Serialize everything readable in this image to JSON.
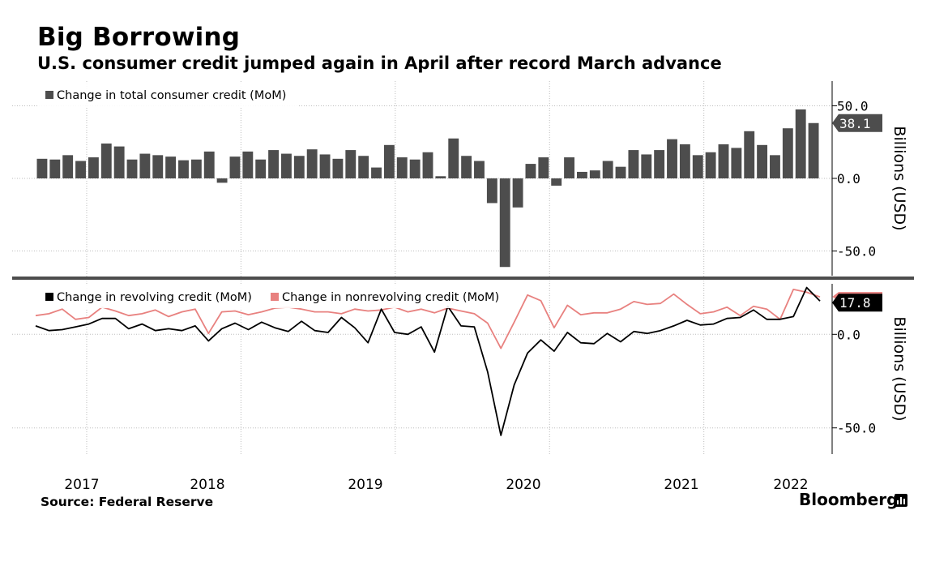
{
  "header": {
    "title": "Big Borrowing",
    "subtitle": "U.S. consumer credit jumped again in April after record March advance"
  },
  "footer": {
    "source": "Source: Federal Reserve",
    "brand": "Bloomberg",
    "brand_icon": "bloomberg-terminal-icon"
  },
  "colors": {
    "bar": "#4d4d4d",
    "revolving": "#000000",
    "nonrevolving": "#e8817f",
    "grid": "#bdbdbd",
    "divider": "#4d4d4d"
  },
  "chart_data": [
    {
      "type": "bar",
      "legend": [
        "Change in total consumer credit (MoM)"
      ],
      "ylabel": "Billions (USD)",
      "yticks": [
        50.0,
        0.0,
        -50.0
      ],
      "ytick_labels": [
        "50.0",
        "0.0",
        "-50.0"
      ],
      "ylim": [
        -67,
        67
      ],
      "x_start": "2016-09",
      "x_end": "2022-04",
      "x_tick_labels": [
        "2017",
        "2018",
        "2019",
        "2020",
        "2021",
        "2022"
      ],
      "last_value_label": "38.1",
      "series": [
        {
          "name": "Change in total consumer credit (MoM)",
          "values": [
            13.5,
            13.0,
            16.0,
            12.0,
            14.5,
            24.0,
            22.0,
            13.0,
            17.0,
            16.0,
            15.0,
            12.5,
            13.0,
            18.5,
            -3.0,
            15.0,
            18.5,
            13.0,
            19.5,
            17.0,
            15.5,
            20.0,
            16.5,
            13.5,
            19.5,
            15.5,
            7.5,
            23.0,
            14.5,
            13.0,
            18.0,
            1.5,
            27.5,
            15.5,
            12.0,
            -17.0,
            -61.0,
            -20.0,
            10.0,
            14.5,
            -5.0,
            14.5,
            4.5,
            5.5,
            12.0,
            8.0,
            19.5,
            16.5,
            19.5,
            27.0,
            23.5,
            16.0,
            18.0,
            23.5,
            21.0,
            32.5,
            23.0,
            16.0,
            34.5,
            47.5,
            38.1
          ]
        }
      ]
    },
    {
      "type": "line",
      "legend": [
        "Change in revolving credit (MoM)",
        "Change in nonrevolving credit (MoM)"
      ],
      "ylabel": "Billions (USD)",
      "yticks": [
        0.0,
        -50.0
      ],
      "ytick_labels": [
        "0.0",
        "-50.0"
      ],
      "ylim": [
        -64,
        27
      ],
      "x_start": "2016-09",
      "x_end": "2022-04",
      "x_tick_labels": [
        "2017",
        "2018",
        "2019",
        "2020",
        "2021",
        "2022"
      ],
      "last_value_label": "17.8",
      "series": [
        {
          "name": "Change in revolving credit (MoM)",
          "values": [
            4.5,
            2.0,
            2.5,
            4.0,
            5.5,
            8.5,
            8.5,
            3.0,
            5.5,
            2.0,
            3.0,
            2.0,
            4.5,
            -3.5,
            3.0,
            6.0,
            2.5,
            6.5,
            3.5,
            1.5,
            7.0,
            2.0,
            1.0,
            9.0,
            3.5,
            -4.5,
            13.5,
            1.0,
            0.0,
            4.0,
            -9.5,
            15.0,
            4.5,
            4.0,
            -20.0,
            -54.0,
            -27.0,
            -10.0,
            -3.0,
            -9.0,
            1.0,
            -4.5,
            -5.0,
            0.5,
            -4.0,
            1.5,
            0.5,
            2.0,
            4.5,
            7.5,
            5.0,
            5.5,
            8.5,
            9.0,
            13.0,
            8.0,
            8.0,
            9.5,
            25.0,
            17.8
          ]
        },
        {
          "name": "Change in nonrevolving credit (MoM)",
          "values": [
            10.0,
            11.0,
            13.5,
            8.0,
            9.0,
            14.5,
            12.5,
            10.0,
            11.0,
            13.0,
            9.5,
            12.0,
            13.5,
            0.5,
            12.0,
            12.5,
            10.5,
            12.0,
            14.0,
            14.5,
            13.5,
            12.0,
            12.0,
            11.0,
            13.5,
            12.5,
            13.0,
            14.5,
            12.0,
            13.5,
            11.5,
            14.0,
            12.5,
            11.0,
            6.0,
            -7.5,
            6.5,
            21.0,
            18.0,
            3.5,
            15.5,
            10.5,
            11.5,
            11.5,
            13.5,
            17.5,
            16.0,
            16.5,
            21.5,
            16.0,
            11.0,
            12.0,
            14.5,
            10.0,
            15.0,
            13.5,
            8.0,
            24.0,
            22.5,
            20.0
          ]
        }
      ]
    }
  ]
}
